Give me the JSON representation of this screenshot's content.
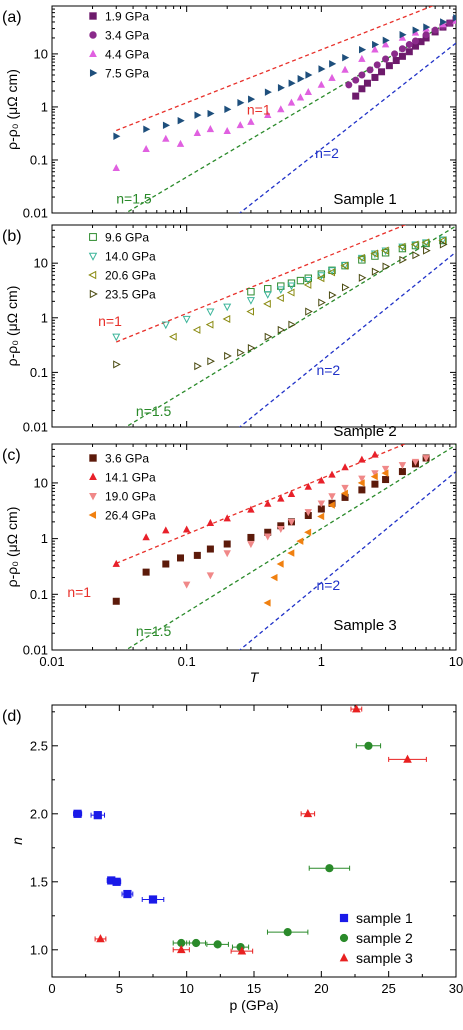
{
  "chart_data": [
    {
      "type": "scatter",
      "panel_label": "(a)",
      "ylabel": "ρ-ρ₀ (μΩ cm)",
      "xlabel": "",
      "xscale": "log",
      "yscale": "log",
      "xlim": [
        0.01,
        10
      ],
      "ylim": [
        0.01,
        80
      ],
      "x_ticks": [
        "0.01",
        "0.1",
        "1",
        "10"
      ],
      "x_tick_labels_shown": false,
      "y_ticks": [
        "0.01",
        "0.1",
        "1",
        "10"
      ],
      "annotation": "Sample 1",
      "legend_position": "top-left",
      "series": [
        {
          "name": "1.9 GPa",
          "marker": "square-half",
          "color": "#6d1a6b",
          "x": [
            1.8,
            2,
            2.2,
            2.5,
            2.8,
            3.2,
            3.6,
            4,
            4.5,
            5,
            5.5,
            6,
            7,
            8,
            9,
            10
          ],
          "y": [
            1.6,
            2.2,
            2.8,
            3.6,
            4.6,
            6,
            7.5,
            9,
            11,
            14,
            17,
            20,
            26,
            32,
            38,
            44
          ]
        },
        {
          "name": "3.4 GPa",
          "marker": "circle-half",
          "color": "#8a2a8a",
          "x": [
            1.6,
            1.8,
            2,
            2.3,
            2.6,
            3,
            3.5,
            4,
            4.5,
            5,
            6,
            7,
            8,
            9,
            10
          ],
          "y": [
            2.6,
            3.2,
            4,
            5,
            6.2,
            8,
            10,
            12.5,
            15,
            17.5,
            23,
            28,
            33,
            38,
            44
          ]
        },
        {
          "name": "4.4 GPa",
          "marker": "triangle-up",
          "color": "#e060e0",
          "x": [
            0.03,
            0.05,
            0.07,
            0.09,
            0.12,
            0.15,
            0.2,
            0.25,
            0.3,
            0.4,
            0.5,
            0.6,
            0.7,
            0.8,
            1,
            1.2,
            1.5,
            2,
            2.5,
            3,
            4,
            5,
            6,
            8,
            10
          ],
          "y": [
            0.07,
            0.16,
            0.25,
            0.2,
            0.32,
            0.38,
            0.35,
            0.45,
            0.52,
            0.7,
            0.9,
            1.2,
            1.5,
            1.9,
            2.6,
            3.5,
            5,
            8,
            12,
            15,
            20,
            25,
            30,
            36,
            42
          ]
        },
        {
          "name": "7.5 GPa",
          "marker": "triangle-right",
          "color": "#1e4f7c",
          "x": [
            0.03,
            0.05,
            0.07,
            0.09,
            0.12,
            0.15,
            0.2,
            0.25,
            0.3,
            0.4,
            0.5,
            0.6,
            0.7,
            0.8,
            1,
            1.2,
            1.5,
            2,
            2.5,
            3,
            4,
            5,
            6,
            8,
            10
          ],
          "y": [
            0.28,
            0.38,
            0.45,
            0.55,
            0.7,
            0.75,
            0.9,
            1.2,
            1.4,
            1.9,
            2.3,
            2.8,
            3.4,
            4,
            5.2,
            6.5,
            8.5,
            12,
            15,
            18,
            23,
            28,
            32,
            40,
            48
          ]
        }
      ],
      "fit_lines": [
        {
          "label": "n=1",
          "exponent": 1,
          "color": "#e8302a",
          "x": [
            0.03,
            10
          ],
          "y": [
            0.36,
            120
          ]
        },
        {
          "label": "n=1.5",
          "exponent": 1.5,
          "color": "#2a8a2a",
          "x": [
            0.03,
            10
          ],
          "y": [
            0.0078,
            48
          ]
        },
        {
          "label": "n=2",
          "exponent": 2,
          "color": "#2032c8",
          "x": [
            0.2,
            10
          ],
          "y": [
            0.0065,
            16
          ]
        }
      ]
    },
    {
      "type": "scatter",
      "panel_label": "(b)",
      "ylabel": "ρ-ρ₀ (μΩ cm)",
      "xlabel": "",
      "xscale": "log",
      "yscale": "log",
      "xlim": [
        0.01,
        10
      ],
      "ylim": [
        0.01,
        50
      ],
      "x_ticks": [
        "0.01",
        "0.1",
        "1",
        "10"
      ],
      "x_tick_labels_shown": false,
      "y_ticks": [
        "0.01",
        "0.1",
        "1",
        "10"
      ],
      "annotation": "Sample 2",
      "legend_position": "top-left",
      "series": [
        {
          "name": "9.6 GPa",
          "marker": "square-open",
          "color": "#2e8b2e",
          "x": [
            0.3,
            0.4,
            0.5,
            0.6,
            0.7,
            0.8,
            1,
            1.2,
            1.5,
            2,
            2.5,
            3,
            4,
            5,
            6,
            8
          ],
          "y": [
            3,
            3.4,
            3.8,
            4.3,
            4.8,
            5.3,
            6.3,
            7.4,
            9,
            11.5,
            13.5,
            15.5,
            18.5,
            21,
            23,
            26
          ]
        },
        {
          "name": "14.0 GPa",
          "marker": "triangle-down-open",
          "color": "#3cb59a",
          "x": [
            0.03,
            0.07,
            0.1,
            0.15,
            0.2,
            0.3,
            0.4,
            0.5,
            0.6,
            0.8,
            1,
            1.2,
            1.5,
            2,
            2.5,
            3,
            4,
            5,
            6,
            8
          ],
          "y": [
            0.45,
            0.75,
            0.95,
            1.3,
            1.6,
            2.1,
            2.7,
            3.3,
            3.9,
            4.9,
            6,
            7.4,
            9.3,
            12.5,
            15,
            17,
            20,
            22,
            24,
            27
          ]
        },
        {
          "name": "20.6 GPa",
          "marker": "triangle-left-open",
          "color": "#8a8a10",
          "x": [
            0.08,
            0.12,
            0.15,
            0.2,
            0.3,
            0.4,
            0.5,
            0.6,
            0.8,
            1,
            1.2,
            1.5,
            2,
            2.5,
            3,
            4,
            5,
            6,
            8
          ],
          "y": [
            0.45,
            0.6,
            0.75,
            0.95,
            1.3,
            1.8,
            2.3,
            2.9,
            4,
            5.3,
            6.8,
            9,
            12.5,
            15,
            17,
            20,
            22,
            24,
            26
          ]
        },
        {
          "name": "23.5 GPa",
          "marker": "triangle-right-open",
          "color": "#4a4a10",
          "x": [
            0.03,
            0.12,
            0.15,
            0.2,
            0.25,
            0.3,
            0.4,
            0.5,
            0.6,
            0.8,
            1,
            1.2,
            1.5,
            2,
            2.5,
            3,
            4,
            5,
            6,
            8
          ],
          "y": [
            0.14,
            0.13,
            0.16,
            0.2,
            0.23,
            0.28,
            0.45,
            0.6,
            0.75,
            1.3,
            1.9,
            2.6,
            3.6,
            5.4,
            7,
            8.7,
            11.5,
            14,
            17,
            22
          ]
        }
      ],
      "fit_lines": [
        {
          "label": "n=1",
          "exponent": 1,
          "color": "#e8302a",
          "x": [
            0.03,
            10
          ],
          "y": [
            0.36,
            120
          ]
        },
        {
          "label": "n=1.5",
          "exponent": 1.5,
          "color": "#2a8a2a",
          "x": [
            0.03,
            10
          ],
          "y": [
            0.0078,
            48
          ]
        },
        {
          "label": "n=2",
          "exponent": 2,
          "color": "#2032c8",
          "x": [
            0.2,
            10
          ],
          "y": [
            0.0065,
            16
          ]
        }
      ]
    },
    {
      "type": "scatter",
      "panel_label": "(c)",
      "ylabel": "ρ-ρ₀ (μΩ cm)",
      "xlabel": "T",
      "xscale": "log",
      "yscale": "log",
      "xlim": [
        0.01,
        10
      ],
      "ylim": [
        0.01,
        50
      ],
      "x_ticks": [
        "0.01",
        "0.1",
        "1",
        "10"
      ],
      "x_tick_labels_shown": true,
      "y_ticks": [
        "0.01",
        "0.1",
        "1",
        "10"
      ],
      "annotation": "Sample 3",
      "legend_position": "top-left",
      "series": [
        {
          "name": "3.6 GPa",
          "marker": "square",
          "color": "#5c1a0a",
          "x": [
            0.03,
            0.05,
            0.07,
            0.09,
            0.12,
            0.15,
            0.2,
            0.3,
            0.4,
            0.5,
            0.6,
            0.8,
            1,
            1.2,
            1.5,
            2,
            2.5,
            3,
            4,
            5,
            6
          ],
          "y": [
            0.075,
            0.25,
            0.35,
            0.45,
            0.5,
            0.65,
            0.8,
            1.05,
            1.3,
            1.7,
            2,
            2.6,
            3.4,
            4.3,
            5.5,
            7.5,
            9.5,
            11.5,
            16,
            22,
            28
          ]
        },
        {
          "name": "14.1 GPa",
          "marker": "triangle-up",
          "color": "#e8202a",
          "x": [
            0.03,
            0.05,
            0.07,
            0.1,
            0.15,
            0.2,
            0.3,
            0.4,
            0.5,
            0.6,
            0.8,
            1,
            1.2,
            1.5,
            2,
            2.5
          ],
          "y": [
            0.35,
            1.05,
            1.4,
            1.45,
            1.9,
            2.3,
            3.3,
            4.2,
            5.2,
            6.3,
            8.5,
            11,
            14,
            19,
            26,
            32
          ]
        },
        {
          "name": "19.0 GPa",
          "marker": "triangle-down",
          "color": "#f08888",
          "x": [
            0.1,
            0.15,
            0.2,
            0.3,
            0.4,
            0.5,
            0.6,
            0.8,
            1,
            1.2,
            1.5,
            2,
            2.5,
            3,
            4,
            5,
            6
          ],
          "y": [
            0.15,
            0.22,
            0.55,
            0.8,
            1.1,
            1.5,
            2,
            3,
            4.3,
            5.8,
            8.2,
            12,
            15,
            18,
            21,
            24,
            28
          ]
        },
        {
          "name": "26.4 GPa",
          "marker": "triangle-left",
          "color": "#f08010",
          "x": [
            0.4,
            0.45,
            0.5,
            0.6,
            0.7,
            0.8,
            1,
            1.2,
            1.5,
            2,
            2.5,
            3
          ],
          "y": [
            0.07,
            0.2,
            0.35,
            0.55,
            0.9,
            1.3,
            2.5,
            4,
            6.5,
            10,
            13,
            15
          ]
        }
      ],
      "fit_lines": [
        {
          "label": "n=1",
          "exponent": 1,
          "color": "#e8302a",
          "x": [
            0.03,
            10
          ],
          "y": [
            0.36,
            120
          ]
        },
        {
          "label": "n=1.5",
          "exponent": 1.5,
          "color": "#2a8a2a",
          "x": [
            0.03,
            10
          ],
          "y": [
            0.0078,
            48
          ]
        },
        {
          "label": "n=2",
          "exponent": 2,
          "color": "#2032c8",
          "x": [
            0.2,
            10
          ],
          "y": [
            0.0065,
            16
          ]
        }
      ]
    },
    {
      "type": "scatter",
      "panel_label": "(d)",
      "xlabel": "p (GPa)",
      "ylabel": "n",
      "xscale": "linear",
      "yscale": "linear",
      "xlim": [
        0,
        30
      ],
      "ylim": [
        0.8,
        2.8
      ],
      "x_ticks": [
        "0",
        "5",
        "10",
        "15",
        "20",
        "25",
        "30"
      ],
      "y_ticks": [
        "1.0",
        "1.5",
        "2.0",
        "2.5"
      ],
      "legend_position": "bottom-right",
      "series": [
        {
          "name": "sample 1",
          "marker": "square",
          "color": "#1a1ae8",
          "x": [
            1.9,
            3.4,
            4.4,
            4.8,
            5.6,
            7.5
          ],
          "y": [
            2.0,
            1.99,
            1.51,
            1.5,
            1.41,
            1.37
          ],
          "xerr": [
            0.3,
            0.5,
            0.3,
            0.3,
            0.4,
            0.8
          ]
        },
        {
          "name": "sample 2",
          "marker": "circle",
          "color": "#2a8a2a",
          "x": [
            9.6,
            10.7,
            12.3,
            14.0,
            17.5,
            20.6,
            23.5
          ],
          "y": [
            1.05,
            1.05,
            1.04,
            1.02,
            1.13,
            1.6,
            2.5
          ],
          "xerr": [
            0.6,
            0.7,
            0.8,
            0.6,
            1.5,
            1.5,
            0.9
          ]
        },
        {
          "name": "sample 3",
          "marker": "triangle-up",
          "color": "#e82020",
          "x": [
            3.6,
            9.6,
            14.1,
            19.0,
            22.6,
            26.4
          ],
          "y": [
            1.08,
            1.0,
            0.99,
            2.0,
            2.77,
            2.4
          ],
          "xerr": [
            0.4,
            0.6,
            0.8,
            0.5,
            0.4,
            1.4
          ]
        }
      ]
    }
  ]
}
